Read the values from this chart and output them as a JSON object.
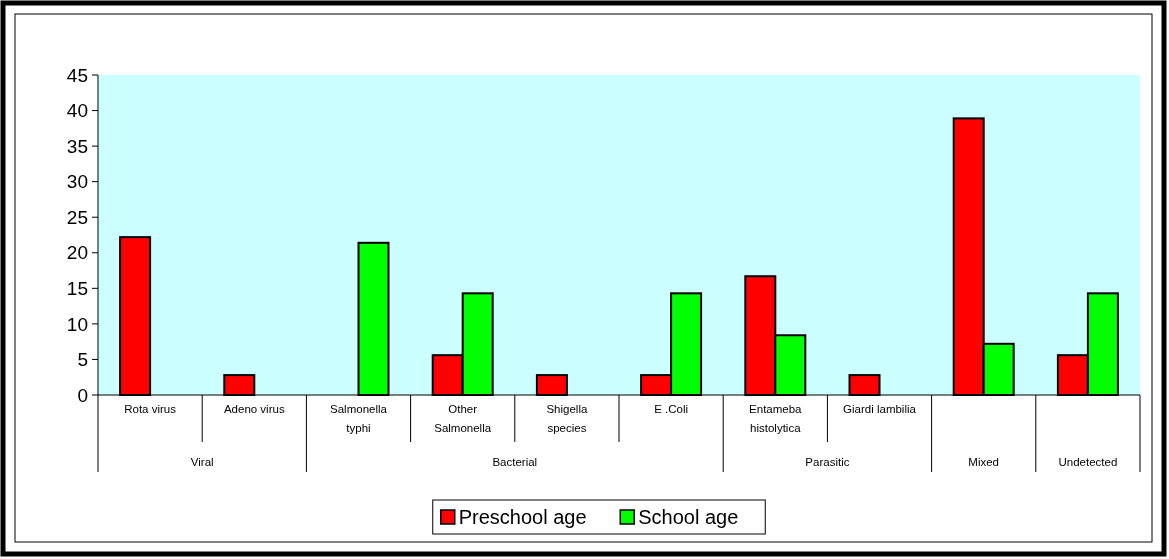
{
  "chart_data": {
    "type": "bar",
    "categories": [
      "Rota virus",
      "Adeno virus",
      "Salmonella typhi",
      "Other Salmonella",
      "Shigella species",
      "E .Coli",
      "Entameba histolytica",
      "Giardi lambilia",
      null,
      null
    ],
    "series": [
      {
        "name": "Preschool age",
        "color": "#ff0000",
        "values": [
          22.2,
          2.8,
          null,
          5.6,
          2.8,
          2.8,
          16.7,
          2.8,
          38.9,
          5.6
        ]
      },
      {
        "name": "School age",
        "color": "#00ff00",
        "values": [
          null,
          null,
          21.4,
          14.3,
          null,
          14.3,
          8.4,
          null,
          7.2,
          14.3
        ]
      }
    ],
    "annotations": [
      "Viral",
      "Bacterial",
      "Parasitic",
      "Mixed",
      "Undetected"
    ],
    "ylim": [
      0,
      45
    ],
    "yticks": [
      0,
      5,
      10,
      15,
      20,
      25,
      30,
      35,
      40,
      45
    ],
    "grid": false,
    "legend": "bottom"
  }
}
